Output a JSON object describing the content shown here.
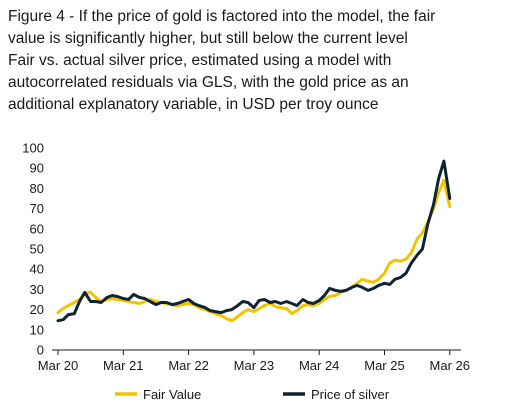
{
  "chart_data": {
    "type": "line",
    "title_lines": [
      "Figure 4 - If the price of gold is factored into the model, the fair",
      "value is significantly higher, but still below the current level",
      "Fair vs. actual silver price, estimated using a model with",
      "autocorrelated residuals via GLS, with the gold price as an",
      "additional explanatory variable, in USD per troy ounce"
    ],
    "x_ticks": [
      "Mar 20",
      "Mar 21",
      "Mar 22",
      "Mar 23",
      "Mar 24",
      "Mar 25",
      "Mar 26"
    ],
    "y_ticks": [
      0,
      10,
      20,
      30,
      40,
      50,
      60,
      70,
      80,
      90,
      100
    ],
    "ylim": [
      0,
      100
    ],
    "xlim": [
      2020.17,
      2026.25
    ],
    "grid": false,
    "legend_position": "bottom",
    "series": [
      {
        "name": "Fair Value",
        "color": "#f2c400",
        "points": [
          [
            2020.17,
            18.5
          ],
          [
            2020.25,
            20.5
          ],
          [
            2020.33,
            22
          ],
          [
            2020.42,
            23.5
          ],
          [
            2020.5,
            25
          ],
          [
            2020.58,
            28
          ],
          [
            2020.67,
            28.5
          ],
          [
            2020.75,
            26
          ],
          [
            2020.83,
            24
          ],
          [
            2020.92,
            25
          ],
          [
            2021.0,
            25.5
          ],
          [
            2021.08,
            25
          ],
          [
            2021.17,
            24.5
          ],
          [
            2021.25,
            24
          ],
          [
            2021.33,
            23.5
          ],
          [
            2021.42,
            23
          ],
          [
            2021.5,
            24
          ],
          [
            2021.58,
            25
          ],
          [
            2021.67,
            24
          ],
          [
            2021.75,
            23.5
          ],
          [
            2021.83,
            23
          ],
          [
            2021.92,
            22.5
          ],
          [
            2022.0,
            22
          ],
          [
            2022.08,
            22.5
          ],
          [
            2022.17,
            23
          ],
          [
            2022.25,
            22.5
          ],
          [
            2022.33,
            21
          ],
          [
            2022.42,
            20
          ],
          [
            2022.5,
            19
          ],
          [
            2022.58,
            18
          ],
          [
            2022.67,
            17
          ],
          [
            2022.75,
            15.5
          ],
          [
            2022.83,
            14.5
          ],
          [
            2022.92,
            16.5
          ],
          [
            2023.0,
            18.5
          ],
          [
            2023.08,
            20
          ],
          [
            2023.17,
            19
          ],
          [
            2023.25,
            20.5
          ],
          [
            2023.33,
            22
          ],
          [
            2023.42,
            23
          ],
          [
            2023.5,
            21.5
          ],
          [
            2023.58,
            21
          ],
          [
            2023.67,
            20.5
          ],
          [
            2023.75,
            18
          ],
          [
            2023.83,
            19.5
          ],
          [
            2023.92,
            22
          ],
          [
            2024.0,
            22.5
          ],
          [
            2024.08,
            22
          ],
          [
            2024.17,
            23
          ],
          [
            2024.25,
            25
          ],
          [
            2024.33,
            26.5
          ],
          [
            2024.42,
            27
          ],
          [
            2024.5,
            28.5
          ],
          [
            2024.58,
            29.5
          ],
          [
            2024.67,
            31
          ],
          [
            2024.75,
            33
          ],
          [
            2024.83,
            35
          ],
          [
            2024.92,
            34
          ],
          [
            2025.0,
            33.5
          ],
          [
            2025.08,
            35
          ],
          [
            2025.17,
            38
          ],
          [
            2025.25,
            43
          ],
          [
            2025.33,
            44.5
          ],
          [
            2025.42,
            44
          ],
          [
            2025.5,
            45
          ],
          [
            2025.58,
            48
          ],
          [
            2025.67,
            55
          ],
          [
            2025.75,
            58
          ],
          [
            2025.83,
            63
          ],
          [
            2025.92,
            70
          ],
          [
            2026.0,
            78
          ],
          [
            2026.08,
            84
          ],
          [
            2026.17,
            71
          ]
        ]
      },
      {
        "name": "Price of silver",
        "color": "#0e2431",
        "points": [
          [
            2020.17,
            14.5
          ],
          [
            2020.25,
            15
          ],
          [
            2020.33,
            17.5
          ],
          [
            2020.42,
            18
          ],
          [
            2020.5,
            24
          ],
          [
            2020.58,
            28.5
          ],
          [
            2020.67,
            24
          ],
          [
            2020.75,
            24
          ],
          [
            2020.83,
            23.5
          ],
          [
            2020.92,
            26
          ],
          [
            2021.0,
            27
          ],
          [
            2021.08,
            26.5
          ],
          [
            2021.17,
            25.5
          ],
          [
            2021.25,
            25
          ],
          [
            2021.33,
            27.5
          ],
          [
            2021.42,
            26
          ],
          [
            2021.5,
            25.5
          ],
          [
            2021.58,
            24
          ],
          [
            2021.67,
            22.5
          ],
          [
            2021.75,
            23.5
          ],
          [
            2021.83,
            23.5
          ],
          [
            2021.92,
            22.5
          ],
          [
            2022.0,
            23
          ],
          [
            2022.08,
            24
          ],
          [
            2022.17,
            25
          ],
          [
            2022.25,
            23
          ],
          [
            2022.33,
            22
          ],
          [
            2022.42,
            21
          ],
          [
            2022.5,
            19.5
          ],
          [
            2022.58,
            19
          ],
          [
            2022.67,
            18.5
          ],
          [
            2022.75,
            19.5
          ],
          [
            2022.83,
            20
          ],
          [
            2022.92,
            22
          ],
          [
            2023.0,
            24
          ],
          [
            2023.08,
            23.5
          ],
          [
            2023.17,
            21
          ],
          [
            2023.25,
            24.5
          ],
          [
            2023.33,
            25
          ],
          [
            2023.42,
            23.5
          ],
          [
            2023.5,
            24
          ],
          [
            2023.58,
            23
          ],
          [
            2023.67,
            24
          ],
          [
            2023.75,
            23
          ],
          [
            2023.83,
            22
          ],
          [
            2023.92,
            25
          ],
          [
            2024.0,
            23.5
          ],
          [
            2024.08,
            23
          ],
          [
            2024.17,
            24.5
          ],
          [
            2024.25,
            27
          ],
          [
            2024.33,
            30.5
          ],
          [
            2024.42,
            29.5
          ],
          [
            2024.5,
            29
          ],
          [
            2024.58,
            29.5
          ],
          [
            2024.67,
            31
          ],
          [
            2024.75,
            32
          ],
          [
            2024.83,
            31
          ],
          [
            2024.92,
            29.5
          ],
          [
            2025.0,
            30.5
          ],
          [
            2025.08,
            32
          ],
          [
            2025.17,
            33
          ],
          [
            2025.25,
            32.5
          ],
          [
            2025.33,
            35
          ],
          [
            2025.42,
            36
          ],
          [
            2025.5,
            38
          ],
          [
            2025.58,
            43
          ],
          [
            2025.67,
            47
          ],
          [
            2025.75,
            50
          ],
          [
            2025.83,
            62
          ],
          [
            2025.92,
            72
          ],
          [
            2026.0,
            85
          ],
          [
            2026.08,
            93.5
          ],
          [
            2026.17,
            75
          ]
        ]
      }
    ]
  }
}
